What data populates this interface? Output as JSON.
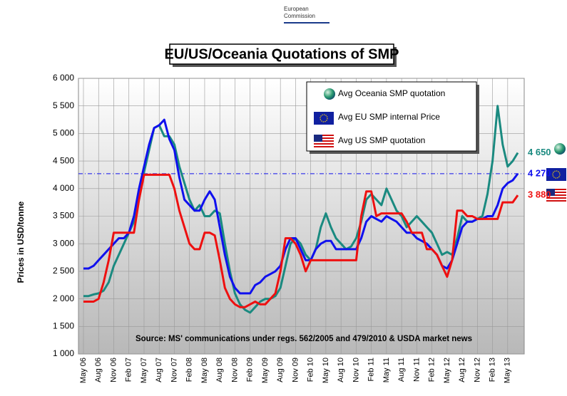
{
  "header": {
    "org": [
      "European",
      "Commission"
    ]
  },
  "chart_data": {
    "type": "line",
    "title": "EU/US/Oceania Quotations of SMP",
    "y_label": "Prices in USD/tonne",
    "annotation": "Source: MS' communications under regs. 562/2005 and 479/2010 & USDA market news",
    "categories": [
      "May 06",
      null,
      null,
      "Aug 06",
      null,
      null,
      "Nov 06",
      null,
      null,
      "Feb 07",
      null,
      null,
      "May 07",
      null,
      null,
      "Aug 07",
      null,
      null,
      "Nov 07",
      null,
      null,
      "Feb 08",
      null,
      null,
      "May 08",
      null,
      null,
      "Aug 08",
      null,
      null,
      "Nov 08",
      null,
      null,
      "Feb 09",
      null,
      null,
      "May 09",
      null,
      null,
      "Aug 09",
      null,
      null,
      "Nov 09",
      null,
      null,
      "Feb 10",
      null,
      null,
      "May 10",
      null,
      null,
      "Aug 10",
      null,
      null,
      "Nov 10",
      null,
      null,
      "Feb 11",
      null,
      null,
      "May 11",
      null,
      null,
      "Aug 11",
      null,
      null,
      "Nov 11",
      null,
      null,
      "Feb 12",
      null,
      null,
      "May 12",
      null,
      null,
      "Aug 12",
      null,
      null,
      "Nov 12",
      null,
      null,
      "Feb 13",
      null,
      null,
      "May 13",
      null,
      null
    ],
    "series": [
      {
        "name": "Avg Oceania SMP quotation",
        "color": "#1a8a80",
        "last_label": "4 650",
        "values": [
          2050,
          2050,
          2080,
          2100,
          2150,
          2300,
          2600,
          2800,
          3000,
          3200,
          3400,
          3800,
          4300,
          4700,
          5100,
          5150,
          4950,
          4950,
          4800,
          4400,
          4100,
          3800,
          3600,
          3700,
          3500,
          3500,
          3600,
          3550,
          3000,
          2500,
          2100,
          1900,
          1800,
          1750,
          1850,
          1950,
          2000,
          2000,
          2050,
          2200,
          2600,
          3000,
          3100,
          3000,
          2800,
          2700,
          2900,
          3300,
          3550,
          3300,
          3100,
          3000,
          2900,
          2950,
          3100,
          3400,
          3800,
          3900,
          3800,
          3700,
          4000,
          3800,
          3600,
          3500,
          3300,
          3400,
          3500,
          3400,
          3300,
          3200,
          3000,
          2800,
          2850,
          2800,
          3100,
          3500,
          3400,
          3400,
          3450,
          3500,
          3900,
          4500,
          5500,
          4800,
          4400,
          4500,
          4650
        ]
      },
      {
        "name": "Avg EU SMP internal Price",
        "color": "#1010ee",
        "last_label": "4 270",
        "values": [
          2550,
          2550,
          2600,
          2700,
          2800,
          2900,
          3000,
          3100,
          3100,
          3200,
          3500,
          4000,
          4400,
          4800,
          5100,
          5150,
          5250,
          4900,
          4700,
          4200,
          3800,
          3700,
          3600,
          3600,
          3800,
          3950,
          3800,
          3300,
          2800,
          2400,
          2200,
          2100,
          2100,
          2100,
          2250,
          2300,
          2400,
          2450,
          2500,
          2600,
          2900,
          3100,
          3100,
          2900,
          2700,
          2700,
          2900,
          3000,
          3050,
          3050,
          2900,
          2900,
          2900,
          2900,
          2900,
          3100,
          3400,
          3500,
          3450,
          3400,
          3500,
          3450,
          3400,
          3300,
          3200,
          3200,
          3100,
          3050,
          3000,
          2900,
          2800,
          2600,
          2550,
          2700,
          3000,
          3300,
          3400,
          3400,
          3450,
          3450,
          3500,
          3500,
          3700,
          4000,
          4100,
          4150,
          4270
        ]
      },
      {
        "name": "Avg US SMP quotation",
        "color": "#ee1010",
        "last_label": "3 880",
        "values": [
          1950,
          1950,
          1950,
          2000,
          2300,
          2700,
          3200,
          3200,
          3200,
          3200,
          3200,
          3800,
          4250,
          4250,
          4250,
          4250,
          4250,
          4250,
          4000,
          3600,
          3300,
          3000,
          2900,
          2900,
          3200,
          3200,
          3150,
          2700,
          2200,
          2000,
          1900,
          1850,
          1850,
          1900,
          1950,
          1900,
          1900,
          2000,
          2100,
          2500,
          3100,
          3100,
          3000,
          2800,
          2500,
          2700,
          2700,
          2700,
          2700,
          2700,
          2700,
          2700,
          2700,
          2700,
          2700,
          3500,
          3950,
          3950,
          3500,
          3550,
          3550,
          3550,
          3550,
          3550,
          3400,
          3200,
          3200,
          3200,
          2900,
          2900,
          2800,
          2600,
          2400,
          2700,
          3600,
          3600,
          3500,
          3500,
          3450,
          3450,
          3450,
          3450,
          3450,
          3750,
          3750,
          3750,
          3880
        ]
      }
    ],
    "reference_line": {
      "value": 4270,
      "color": "#1010ee"
    },
    "ylim": [
      1000,
      6000
    ],
    "yticks": [
      {
        "value": 1000,
        "label": "1 000"
      },
      {
        "value": 1500,
        "label": "1 500"
      },
      {
        "value": 2000,
        "label": "2 000"
      },
      {
        "value": 2500,
        "label": "2 500"
      },
      {
        "value": 3000,
        "label": "3 000"
      },
      {
        "value": 3500,
        "label": "3 500"
      },
      {
        "value": 4000,
        "label": "4 000"
      },
      {
        "value": 4500,
        "label": "4 500"
      },
      {
        "value": 5000,
        "label": "5 000"
      },
      {
        "value": 5500,
        "label": "5 500"
      },
      {
        "value": 6000,
        "label": "6 000"
      }
    ],
    "grid": true
  }
}
